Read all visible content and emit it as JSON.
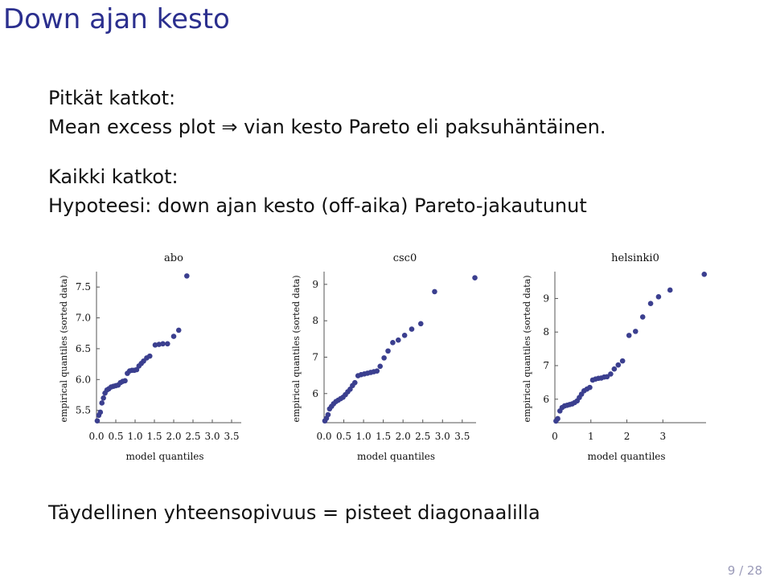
{
  "slide": {
    "title": "Down ajan kesto",
    "line1": "Pitkät katkot:",
    "line2": "Mean excess plot ⇒ vian kesto Pareto eli paksuhäntäinen.",
    "line3": "Kaikki katkot:",
    "line4": "Hypoteesi: down ajan kesto (off-aika) Pareto-jakautunut",
    "conclusion": "Täydellinen yhteensopivuus = pisteet diagonaalilla",
    "page": "9 / 28"
  },
  "chart_data": [
    {
      "type": "scatter",
      "title": "abo",
      "xlabel": "model quantiles",
      "ylabel": "empirical quantiles (sorted data)",
      "xlim": [
        0,
        3.75
      ],
      "ylim": [
        5.3,
        7.75
      ],
      "xticks": [
        0.0,
        0.5,
        1.0,
        1.5,
        2.0,
        2.5,
        3.0,
        3.5
      ],
      "xtick_labels": [
        "0.0",
        "0.5",
        "1.0",
        "1.5",
        "2.0",
        "2.5",
        "3.0",
        "3.5"
      ],
      "yticks": [
        5.5,
        6.0,
        6.5,
        7.0,
        7.5
      ],
      "ytick_labels": [
        "5.5",
        "6.0",
        "6.5",
        "7.0",
        "7.5"
      ],
      "color": "#3b3f8f",
      "points": [
        [
          0.02,
          5.33
        ],
        [
          0.06,
          5.42
        ],
        [
          0.1,
          5.47
        ],
        [
          0.14,
          5.62
        ],
        [
          0.18,
          5.7
        ],
        [
          0.22,
          5.78
        ],
        [
          0.27,
          5.83
        ],
        [
          0.32,
          5.85
        ],
        [
          0.38,
          5.88
        ],
        [
          0.44,
          5.89
        ],
        [
          0.5,
          5.9
        ],
        [
          0.56,
          5.91
        ],
        [
          0.62,
          5.95
        ],
        [
          0.68,
          5.97
        ],
        [
          0.74,
          5.98
        ],
        [
          0.8,
          6.1
        ],
        [
          0.86,
          6.14
        ],
        [
          0.92,
          6.15
        ],
        [
          0.98,
          6.15
        ],
        [
          1.04,
          6.16
        ],
        [
          1.1,
          6.22
        ],
        [
          1.16,
          6.26
        ],
        [
          1.22,
          6.3
        ],
        [
          1.3,
          6.35
        ],
        [
          1.38,
          6.38
        ],
        [
          1.52,
          6.56
        ],
        [
          1.62,
          6.57
        ],
        [
          1.72,
          6.58
        ],
        [
          1.84,
          6.58
        ],
        [
          2.0,
          6.7
        ],
        [
          2.13,
          6.8
        ],
        [
          2.34,
          7.68
        ]
      ]
    },
    {
      "type": "scatter",
      "title": "csc0",
      "xlabel": "model quantiles",
      "ylabel": "empirical quantiles (sorted data)",
      "xlim": [
        0,
        3.85
      ],
      "ylim": [
        5.2,
        9.35
      ],
      "xticks": [
        0.0,
        0.5,
        1.0,
        1.5,
        2.0,
        2.5,
        3.0,
        3.5
      ],
      "xtick_labels": [
        "0.0",
        "0.5",
        "1.0",
        "1.5",
        "2.0",
        "2.5",
        "3.0",
        "3.5"
      ],
      "yticks": [
        6,
        7,
        8,
        9
      ],
      "ytick_labels": [
        "6",
        "7",
        "8",
        "9"
      ],
      "color": "#3b3f8f",
      "points": [
        [
          0.02,
          5.25
        ],
        [
          0.06,
          5.32
        ],
        [
          0.1,
          5.42
        ],
        [
          0.14,
          5.58
        ],
        [
          0.19,
          5.65
        ],
        [
          0.24,
          5.72
        ],
        [
          0.3,
          5.78
        ],
        [
          0.36,
          5.82
        ],
        [
          0.42,
          5.86
        ],
        [
          0.48,
          5.9
        ],
        [
          0.54,
          5.97
        ],
        [
          0.6,
          6.05
        ],
        [
          0.66,
          6.12
        ],
        [
          0.72,
          6.22
        ],
        [
          0.78,
          6.3
        ],
        [
          0.86,
          6.49
        ],
        [
          0.94,
          6.52
        ],
        [
          1.02,
          6.54
        ],
        [
          1.1,
          6.56
        ],
        [
          1.18,
          6.58
        ],
        [
          1.26,
          6.6
        ],
        [
          1.34,
          6.62
        ],
        [
          1.42,
          6.75
        ],
        [
          1.52,
          6.98
        ],
        [
          1.62,
          7.17
        ],
        [
          1.74,
          7.4
        ],
        [
          1.88,
          7.47
        ],
        [
          2.04,
          7.6
        ],
        [
          2.22,
          7.77
        ],
        [
          2.45,
          7.92
        ],
        [
          2.8,
          8.8
        ],
        [
          3.82,
          9.18
        ]
      ]
    },
    {
      "type": "scatter",
      "title": "helsinki0",
      "xlabel": "model quantiles",
      "ylabel": "empirical quantiles (sorted data)",
      "xlim": [
        0,
        4.2
      ],
      "ylim": [
        5.3,
        9.8
      ],
      "xticks": [
        0,
        1,
        2,
        3
      ],
      "xtick_labels": [
        "0",
        "1",
        "2",
        "3"
      ],
      "yticks": [
        6,
        7,
        8,
        9
      ],
      "ytick_labels": [
        "6",
        "7",
        "8",
        "9"
      ],
      "color": "#3b3f8f",
      "points": [
        [
          0.03,
          5.35
        ],
        [
          0.08,
          5.42
        ],
        [
          0.14,
          5.65
        ],
        [
          0.2,
          5.75
        ],
        [
          0.27,
          5.8
        ],
        [
          0.34,
          5.82
        ],
        [
          0.41,
          5.84
        ],
        [
          0.48,
          5.86
        ],
        [
          0.55,
          5.9
        ],
        [
          0.62,
          5.95
        ],
        [
          0.68,
          6.05
        ],
        [
          0.74,
          6.15
        ],
        [
          0.81,
          6.25
        ],
        [
          0.89,
          6.3
        ],
        [
          0.97,
          6.35
        ],
        [
          1.05,
          6.57
        ],
        [
          1.13,
          6.6
        ],
        [
          1.21,
          6.62
        ],
        [
          1.29,
          6.63
        ],
        [
          1.37,
          6.66
        ],
        [
          1.45,
          6.67
        ],
        [
          1.55,
          6.75
        ],
        [
          1.65,
          6.9
        ],
        [
          1.76,
          7.02
        ],
        [
          1.88,
          7.14
        ],
        [
          2.06,
          7.9
        ],
        [
          2.24,
          8.02
        ],
        [
          2.44,
          8.45
        ],
        [
          2.66,
          8.85
        ],
        [
          2.88,
          9.05
        ],
        [
          3.2,
          9.25
        ],
        [
          4.15,
          9.72
        ]
      ]
    }
  ]
}
